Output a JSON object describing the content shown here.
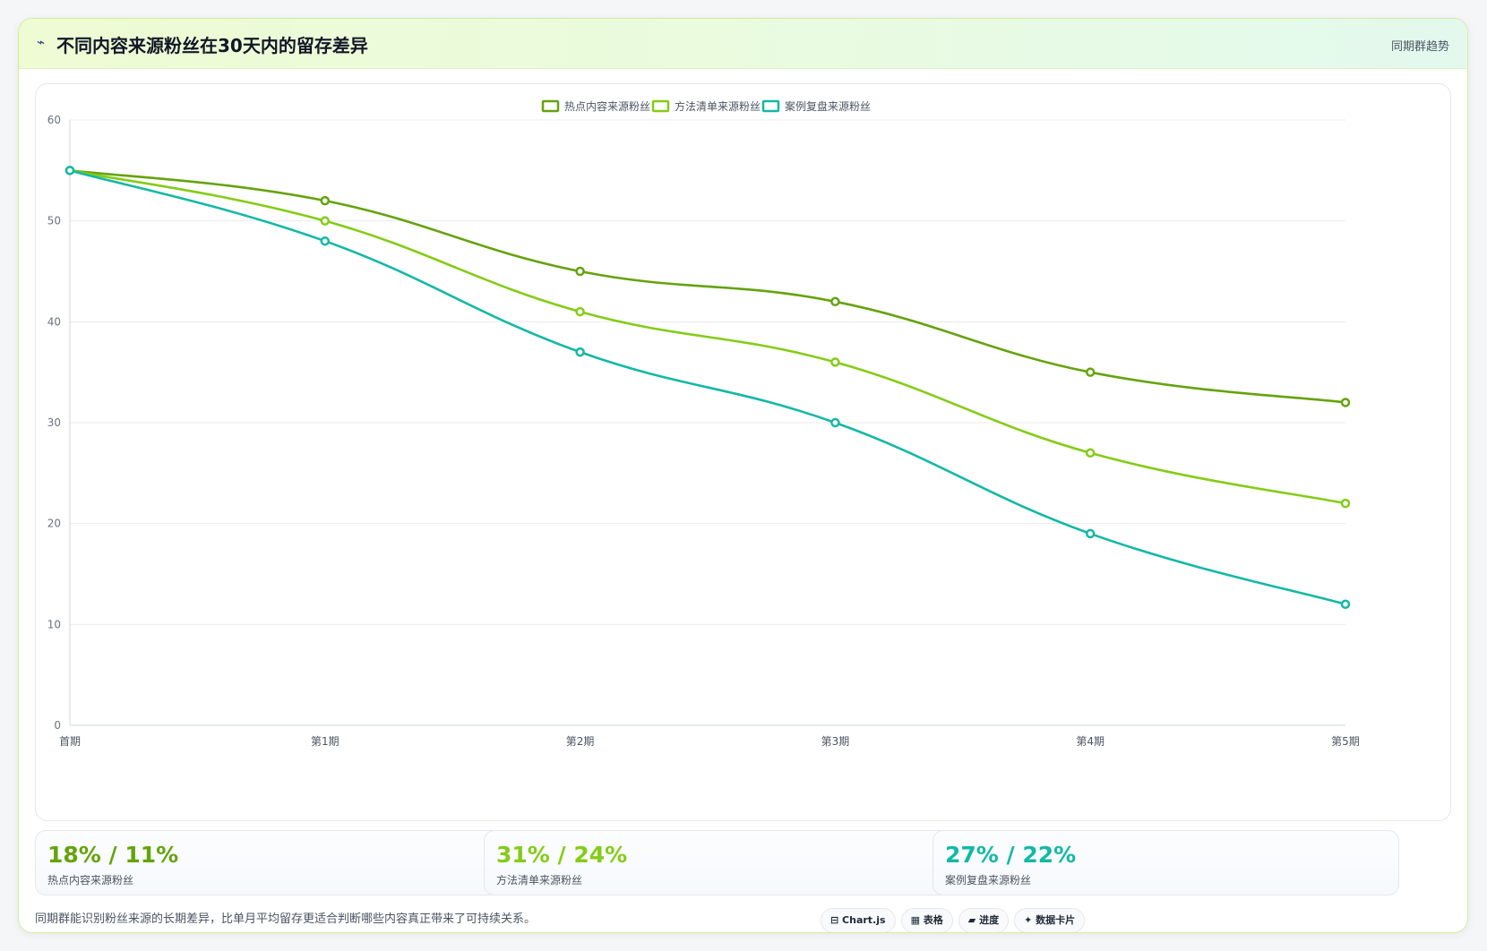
{
  "header": {
    "icon": "trend-line-icon",
    "icon_glyph": "⌁",
    "title": "不同内容来源粉丝在30天内的留存差异",
    "tag": "同期群趋势"
  },
  "colors": {
    "series_1": "#65a30d",
    "series_2": "#84cc16",
    "series_3": "#14b8a6"
  },
  "chart_data": {
    "type": "line",
    "title": "",
    "xlabel": "",
    "ylabel": "",
    "categories": [
      "首期",
      "第1期",
      "第2期",
      "第3期",
      "第4期",
      "第5期"
    ],
    "series": [
      {
        "name": "热点内容来源粉丝",
        "values": [
          55,
          52,
          45,
          42,
          35,
          32
        ],
        "color": "#65a30d"
      },
      {
        "name": "方法清单来源粉丝",
        "values": [
          55,
          50,
          41,
          36,
          27,
          22
        ],
        "color": "#84cc16"
      },
      {
        "name": "案例复盘来源粉丝",
        "values": [
          55,
          48,
          37,
          30,
          19,
          12
        ],
        "color": "#14b8a6"
      }
    ],
    "ylim": [
      0,
      60
    ],
    "yticks": [
      0,
      10,
      20,
      30,
      40,
      50,
      60
    ],
    "grid": true,
    "legend": "top-center",
    "smooth": true
  },
  "stats": [
    {
      "value": "18% / 11%",
      "label": "热点内容来源粉丝",
      "color": "#65a30d"
    },
    {
      "value": "31% / 24%",
      "label": "方法清单来源粉丝",
      "color": "#84cc16"
    },
    {
      "value": "27% / 22%",
      "label": "案例复盘来源粉丝",
      "color": "#14b8a6"
    }
  ],
  "footer": {
    "note": "同期群能识别粉丝来源的长期差异，比单月平均留存更适合判断哪些内容真正带来了可持续关系。",
    "chips": [
      {
        "icon": "chart-icon",
        "label": "⊟ Chart.js"
      },
      {
        "icon": "table-icon",
        "label": "▦ 表格"
      },
      {
        "icon": "progress-icon",
        "label": "▰ 进度"
      },
      {
        "icon": "card-icon",
        "label": "✦ 数据卡片"
      }
    ]
  }
}
